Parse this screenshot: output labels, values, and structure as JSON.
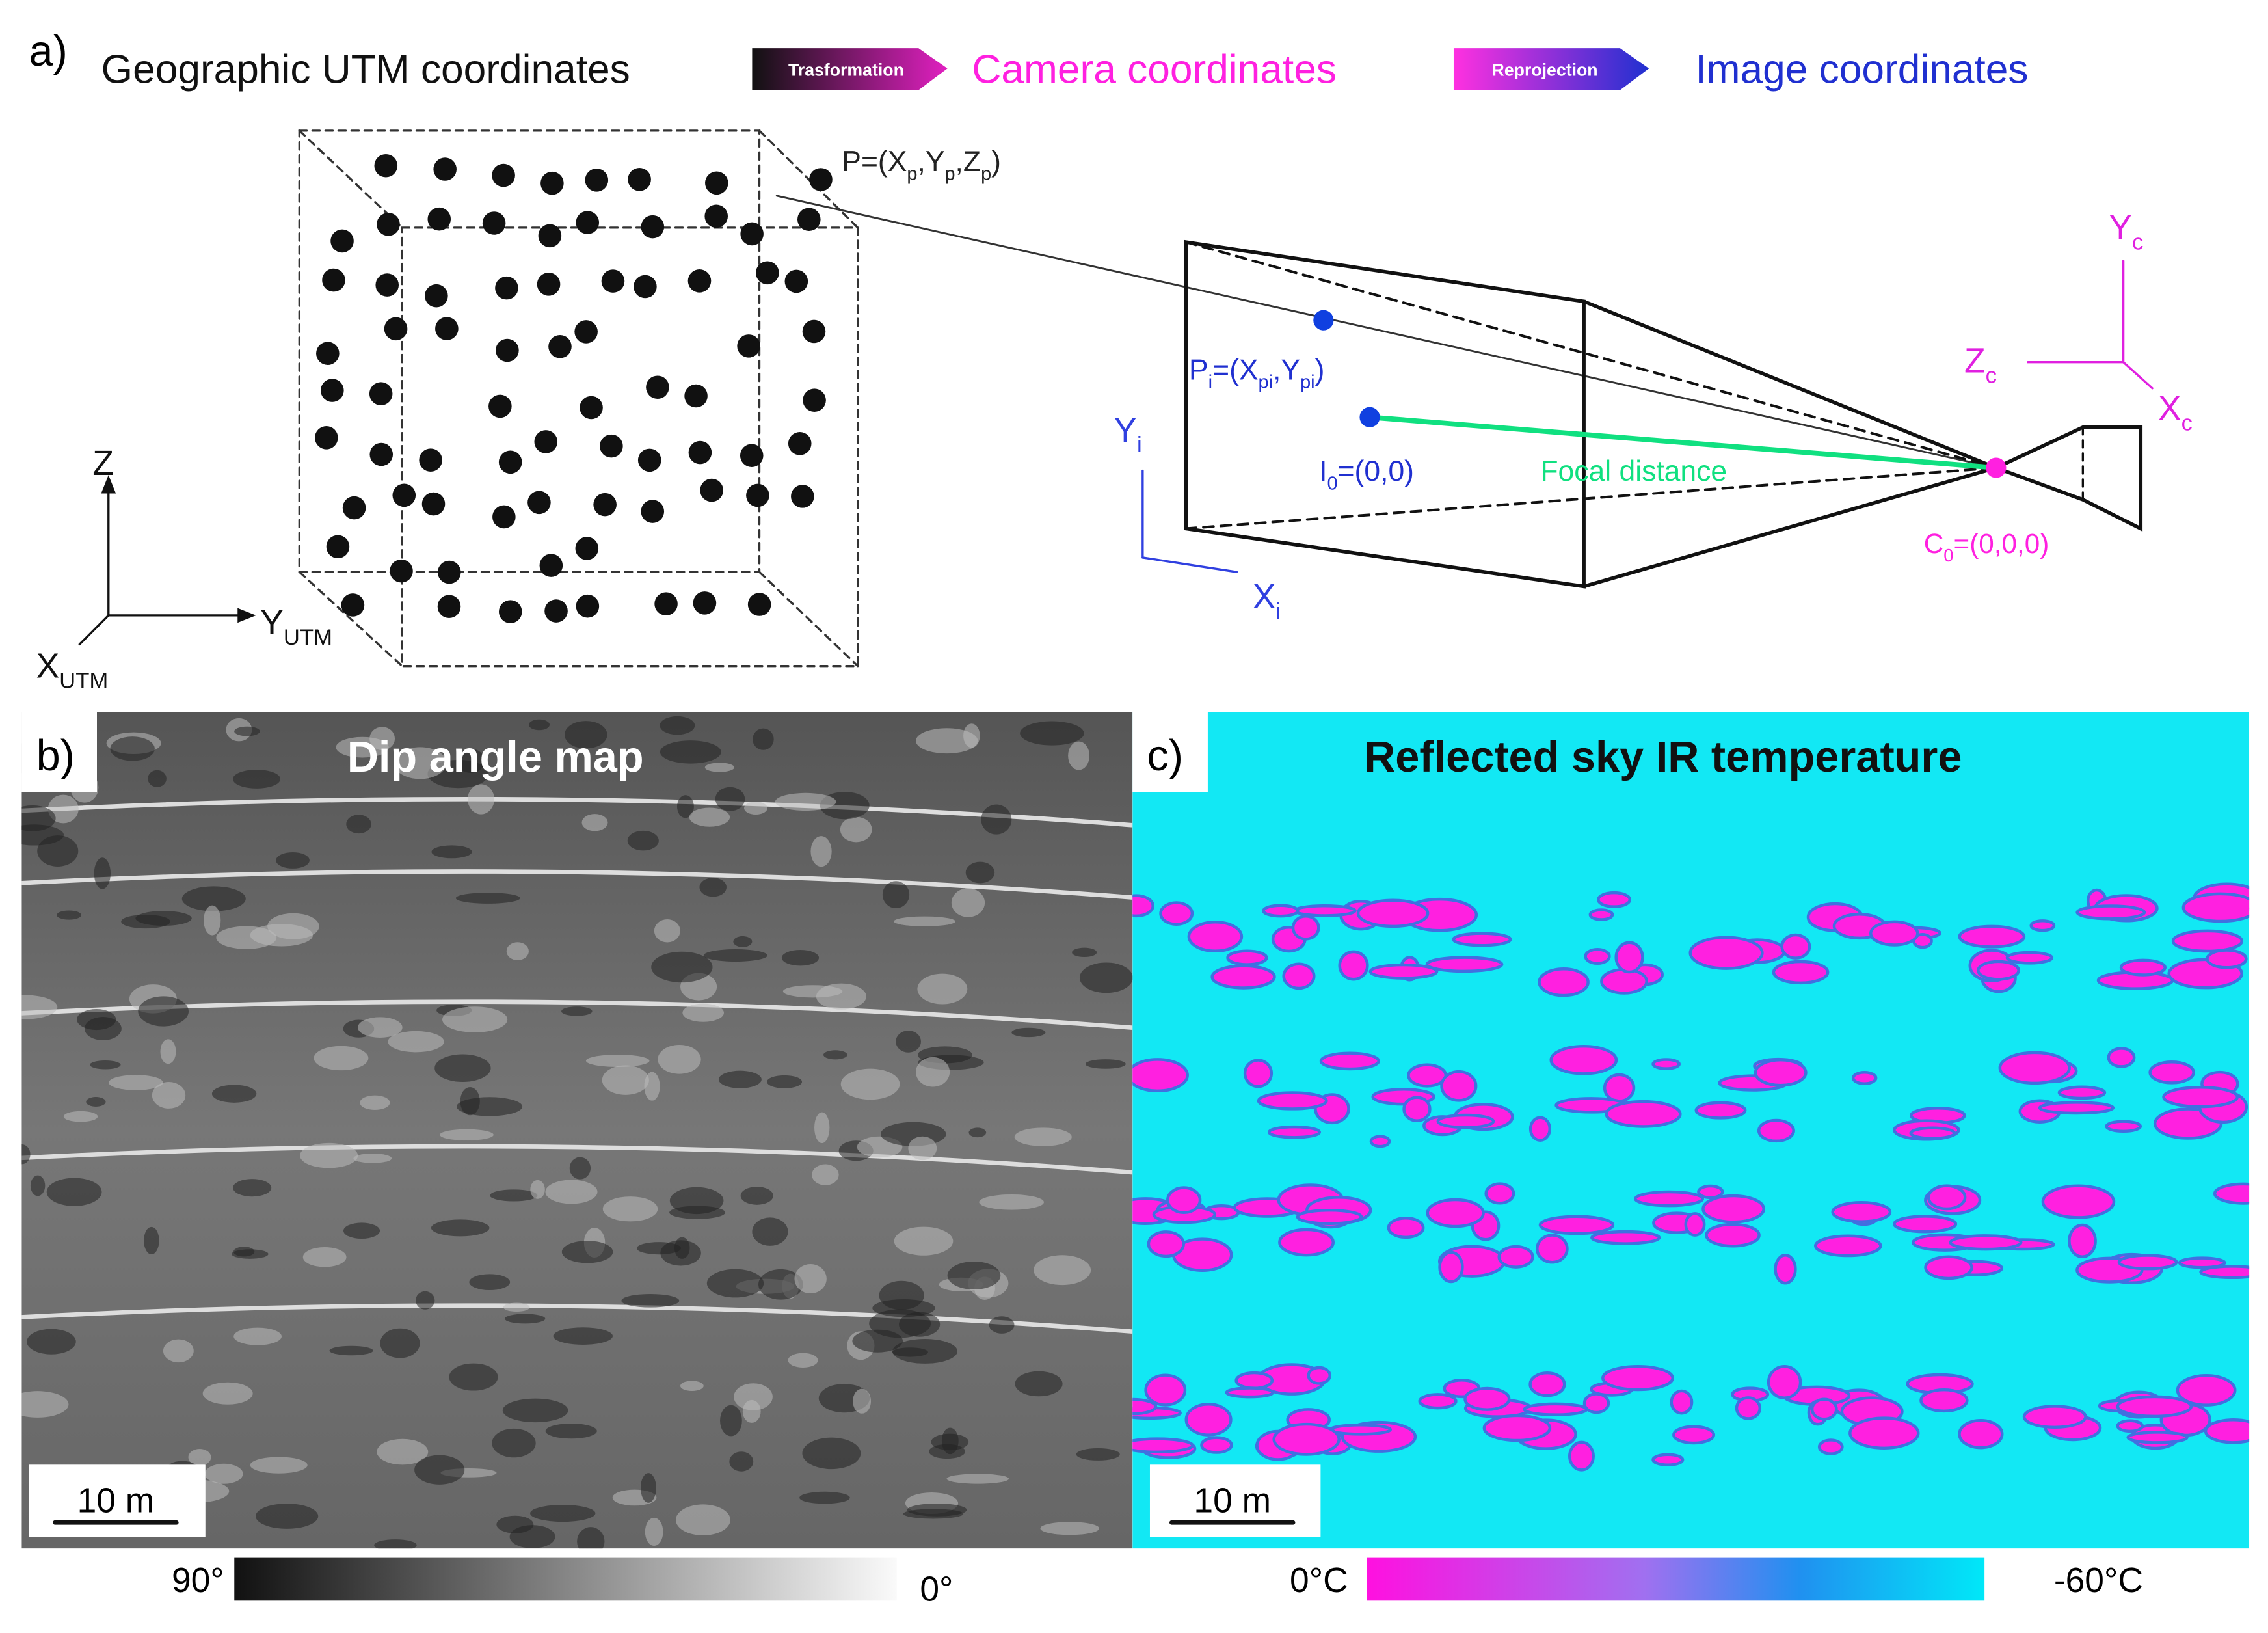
{
  "panel_a": {
    "label": "a)",
    "flow": [
      "Geographic UTM coordinates",
      "Camera coordinates",
      "Image coordinates"
    ],
    "arrows": [
      "Trasformation",
      "Reprojection"
    ],
    "point_label": [
      "P=(X",
      "p",
      ",Y",
      "p",
      ",Z",
      "p",
      ")"
    ],
    "image_point": [
      "P",
      "i",
      "=(X",
      "pi",
      ",Y",
      "pi",
      ")"
    ],
    "principal_point": [
      "I",
      "0",
      "=(0,0)"
    ],
    "focal_distance": "Focal distance",
    "camera_center": [
      "C",
      "0",
      "=(0,0,0)"
    ],
    "world_axes": {
      "z": [
        "Z"
      ],
      "y": [
        "Y",
        "UTM"
      ],
      "x": [
        "X",
        "UTM"
      ]
    },
    "camera_axes": {
      "y": [
        "Y",
        "c"
      ],
      "z": [
        "Z",
        "c"
      ],
      "x": [
        "X",
        "c"
      ]
    },
    "image_axes": {
      "y": [
        "Y",
        "i"
      ],
      "x": [
        "X",
        "i"
      ]
    }
  },
  "panel_b": {
    "label": "b)",
    "title": "Dip angle map",
    "scale": "10 m",
    "colorbar": {
      "left": "90°",
      "right": "0°"
    }
  },
  "panel_c": {
    "label": "c)",
    "title": "Reflected sky IR temperature",
    "scale": "10 m",
    "colorbar": {
      "left": "0°C",
      "right": "-60°C"
    }
  }
}
